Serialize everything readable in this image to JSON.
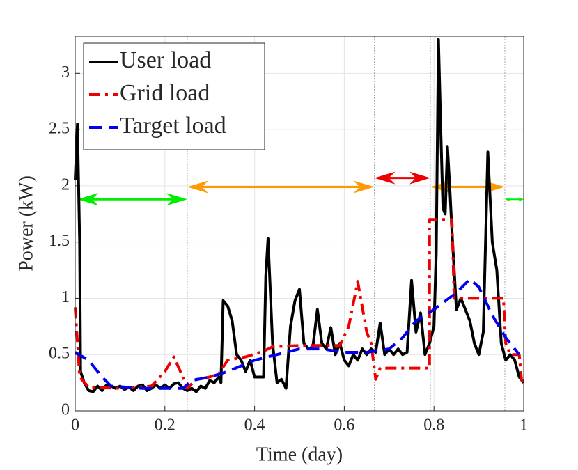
{
  "chart_data": {
    "type": "line",
    "xlabel": "Time (day)",
    "ylabel": "Power (kW)",
    "xlim": [
      0,
      1
    ],
    "ylim": [
      0,
      3.33
    ],
    "xticks": [
      0,
      0.2,
      0.4,
      0.6,
      0.8,
      1
    ],
    "yticks": [
      0,
      0.5,
      1,
      1.5,
      2,
      2.5,
      3
    ],
    "grid": true,
    "legend": "upper left",
    "vlines": [
      0.25,
      0.667,
      0.792,
      0.958
    ],
    "arrows": [
      {
        "start": 0.005,
        "end": 0.25,
        "y": 1.88,
        "color": "#00ee00"
      },
      {
        "start": 0.25,
        "end": 0.667,
        "y": 1.99,
        "color": "#ff9900"
      },
      {
        "start": 0.667,
        "end": 0.792,
        "y": 2.07,
        "color": "#ee0000"
      },
      {
        "start": 0.792,
        "end": 0.958,
        "y": 1.99,
        "color": "#ff9900"
      },
      {
        "start": 0.958,
        "end": 1,
        "y": 1.88,
        "color": "#00ee00"
      }
    ],
    "series": [
      {
        "name": "User load",
        "color": "#000000",
        "dash": "solid",
        "x": [
          0,
          0.005,
          0.01,
          0.012,
          0.02,
          0.03,
          0.04,
          0.05,
          0.06,
          0.07,
          0.08,
          0.09,
          0.1,
          0.11,
          0.12,
          0.13,
          0.14,
          0.15,
          0.16,
          0.17,
          0.18,
          0.19,
          0.2,
          0.21,
          0.22,
          0.23,
          0.24,
          0.25,
          0.26,
          0.27,
          0.28,
          0.29,
          0.3,
          0.31,
          0.32,
          0.325,
          0.33,
          0.34,
          0.35,
          0.36,
          0.37,
          0.38,
          0.39,
          0.4,
          0.41,
          0.42,
          0.425,
          0.43,
          0.44,
          0.45,
          0.46,
          0.47,
          0.48,
          0.49,
          0.5,
          0.51,
          0.52,
          0.53,
          0.54,
          0.55,
          0.56,
          0.57,
          0.58,
          0.59,
          0.6,
          0.61,
          0.62,
          0.63,
          0.64,
          0.65,
          0.66,
          0.67,
          0.68,
          0.69,
          0.7,
          0.71,
          0.72,
          0.73,
          0.74,
          0.75,
          0.76,
          0.77,
          0.78,
          0.79,
          0.8,
          0.805,
          0.81,
          0.815,
          0.82,
          0.825,
          0.83,
          0.835,
          0.84,
          0.85,
          0.86,
          0.87,
          0.88,
          0.89,
          0.9,
          0.91,
          0.92,
          0.93,
          0.94,
          0.95,
          0.96,
          0.97,
          0.98,
          0.99,
          1
        ],
        "values": [
          2.05,
          2.55,
          1.5,
          0.35,
          0.25,
          0.18,
          0.17,
          0.22,
          0.18,
          0.23,
          0.22,
          0.2,
          0.22,
          0.19,
          0.21,
          0.18,
          0.22,
          0.23,
          0.18,
          0.2,
          0.23,
          0.2,
          0.23,
          0.2,
          0.24,
          0.25,
          0.2,
          0.18,
          0.2,
          0.17,
          0.22,
          0.2,
          0.27,
          0.25,
          0.3,
          0.25,
          0.98,
          0.93,
          0.8,
          0.5,
          0.45,
          0.35,
          0.45,
          0.3,
          0.3,
          0.3,
          1.2,
          1.53,
          0.6,
          0.25,
          0.28,
          0.2,
          0.75,
          0.98,
          1.08,
          0.6,
          0.55,
          0.57,
          0.9,
          0.6,
          0.55,
          0.74,
          0.5,
          0.6,
          0.45,
          0.4,
          0.5,
          0.45,
          0.55,
          0.5,
          0.55,
          0.52,
          0.78,
          0.5,
          0.55,
          0.5,
          0.55,
          0.5,
          0.52,
          1.16,
          0.7,
          0.87,
          0.5,
          0.6,
          0.75,
          1.4,
          3.3,
          2.5,
          1.8,
          1.75,
          2.35,
          2.0,
          1.6,
          0.9,
          1.0,
          0.9,
          0.8,
          0.6,
          0.5,
          0.7,
          2.3,
          1.5,
          1.25,
          0.6,
          0.45,
          0.5,
          0.45,
          0.3,
          0.25
        ]
      },
      {
        "name": "Grid load",
        "color": "#ee0000",
        "dash": "dashdot",
        "x": [
          0,
          0.01,
          0.03,
          0.1,
          0.17,
          0.2,
          0.22,
          0.24,
          0.25,
          0.27,
          0.3,
          0.32,
          0.34,
          0.38,
          0.42,
          0.44,
          0.5,
          0.56,
          0.59,
          0.61,
          0.63,
          0.65,
          0.66,
          0.67,
          0.68,
          0.79,
          0.79,
          0.84,
          0.845,
          0.92,
          0.955,
          0.96,
          0.97,
          0.99,
          0.995,
          1
        ],
        "values": [
          0.92,
          0.3,
          0.21,
          0.2,
          0.22,
          0.35,
          0.48,
          0.3,
          0.2,
          0.28,
          0.3,
          0.33,
          0.45,
          0.48,
          0.53,
          0.57,
          0.58,
          0.58,
          0.58,
          0.75,
          1.15,
          0.7,
          0.6,
          0.28,
          0.38,
          0.38,
          1.7,
          1.7,
          1.0,
          1.0,
          1.0,
          0.6,
          0.5,
          0.5,
          0.28,
          0.25
        ]
      },
      {
        "name": "Target load",
        "color": "#0000ee",
        "dash": "dashed",
        "x": [
          0,
          0.03,
          0.06,
          0.08,
          0.15,
          0.24,
          0.26,
          0.3,
          0.34,
          0.4,
          0.45,
          0.5,
          0.55,
          0.6,
          0.65,
          0.7,
          0.73,
          0.76,
          0.8,
          0.85,
          0.88,
          0.9,
          0.93,
          0.96,
          0.99
        ],
        "values": [
          0.52,
          0.45,
          0.3,
          0.22,
          0.2,
          0.2,
          0.27,
          0.3,
          0.35,
          0.45,
          0.5,
          0.55,
          0.55,
          0.52,
          0.52,
          0.55,
          0.65,
          0.8,
          0.9,
          1.05,
          1.17,
          1.1,
          0.85,
          0.65,
          0.5
        ]
      }
    ]
  }
}
